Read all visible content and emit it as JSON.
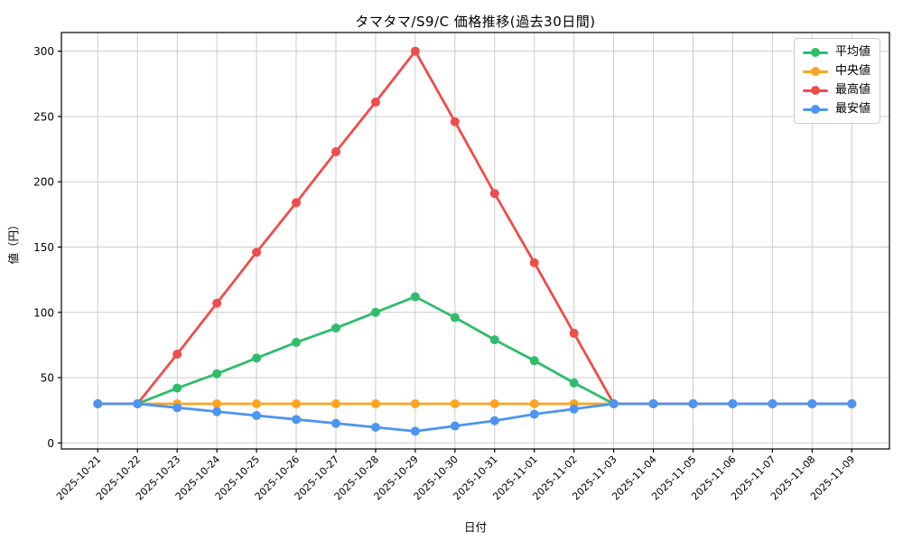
{
  "title": "タマタマ/S9/C 価格推移(過去30日間)",
  "chart_data": {
    "type": "line",
    "title": "タマタマ/S9/C 価格推移(過去30日間)",
    "xlabel": "日付",
    "ylabel": "値（円）",
    "x": [
      "2025-10-21",
      "2025-10-22",
      "2025-10-23",
      "2025-10-24",
      "2025-10-25",
      "2025-10-26",
      "2025-10-27",
      "2025-10-28",
      "2025-10-29",
      "2025-10-30",
      "2025-10-31",
      "2025-11-01",
      "2025-11-02",
      "2025-11-03",
      "2025-11-04",
      "2025-11-05",
      "2025-11-06",
      "2025-11-07",
      "2025-11-08",
      "2025-11-09"
    ],
    "series": [
      {
        "name": "平均値",
        "color": "#2ebd6b",
        "values": [
          30,
          30,
          42,
          53,
          65,
          77,
          88,
          100,
          112,
          96,
          79,
          63,
          46,
          30,
          30,
          30,
          30,
          30,
          30,
          30
        ]
      },
      {
        "name": "中央値",
        "color": "#ffa420",
        "values": [
          30,
          30,
          30,
          30,
          30,
          30,
          30,
          30,
          30,
          30,
          30,
          30,
          30,
          30,
          30,
          30,
          30,
          30,
          30,
          30
        ]
      },
      {
        "name": "最高値",
        "color": "#f04c4c",
        "values": [
          30,
          30,
          68,
          107,
          146,
          184,
          223,
          261,
          300,
          246,
          191,
          138,
          84,
          30,
          30,
          30,
          30,
          30,
          30,
          30
        ]
      },
      {
        "name": "最安値",
        "color": "#4c95f2",
        "values": [
          30,
          30,
          27,
          24,
          21,
          18,
          15,
          12,
          9,
          13,
          17,
          22,
          26,
          30,
          30,
          30,
          30,
          30,
          30,
          30
        ]
      }
    ],
    "yticks": [
      0,
      50,
      100,
      150,
      200,
      250,
      300
    ],
    "ylim": [
      -4.6,
      314.3
    ],
    "grid": true,
    "grid_color": "#cccccc",
    "legend_position": "upper right"
  }
}
